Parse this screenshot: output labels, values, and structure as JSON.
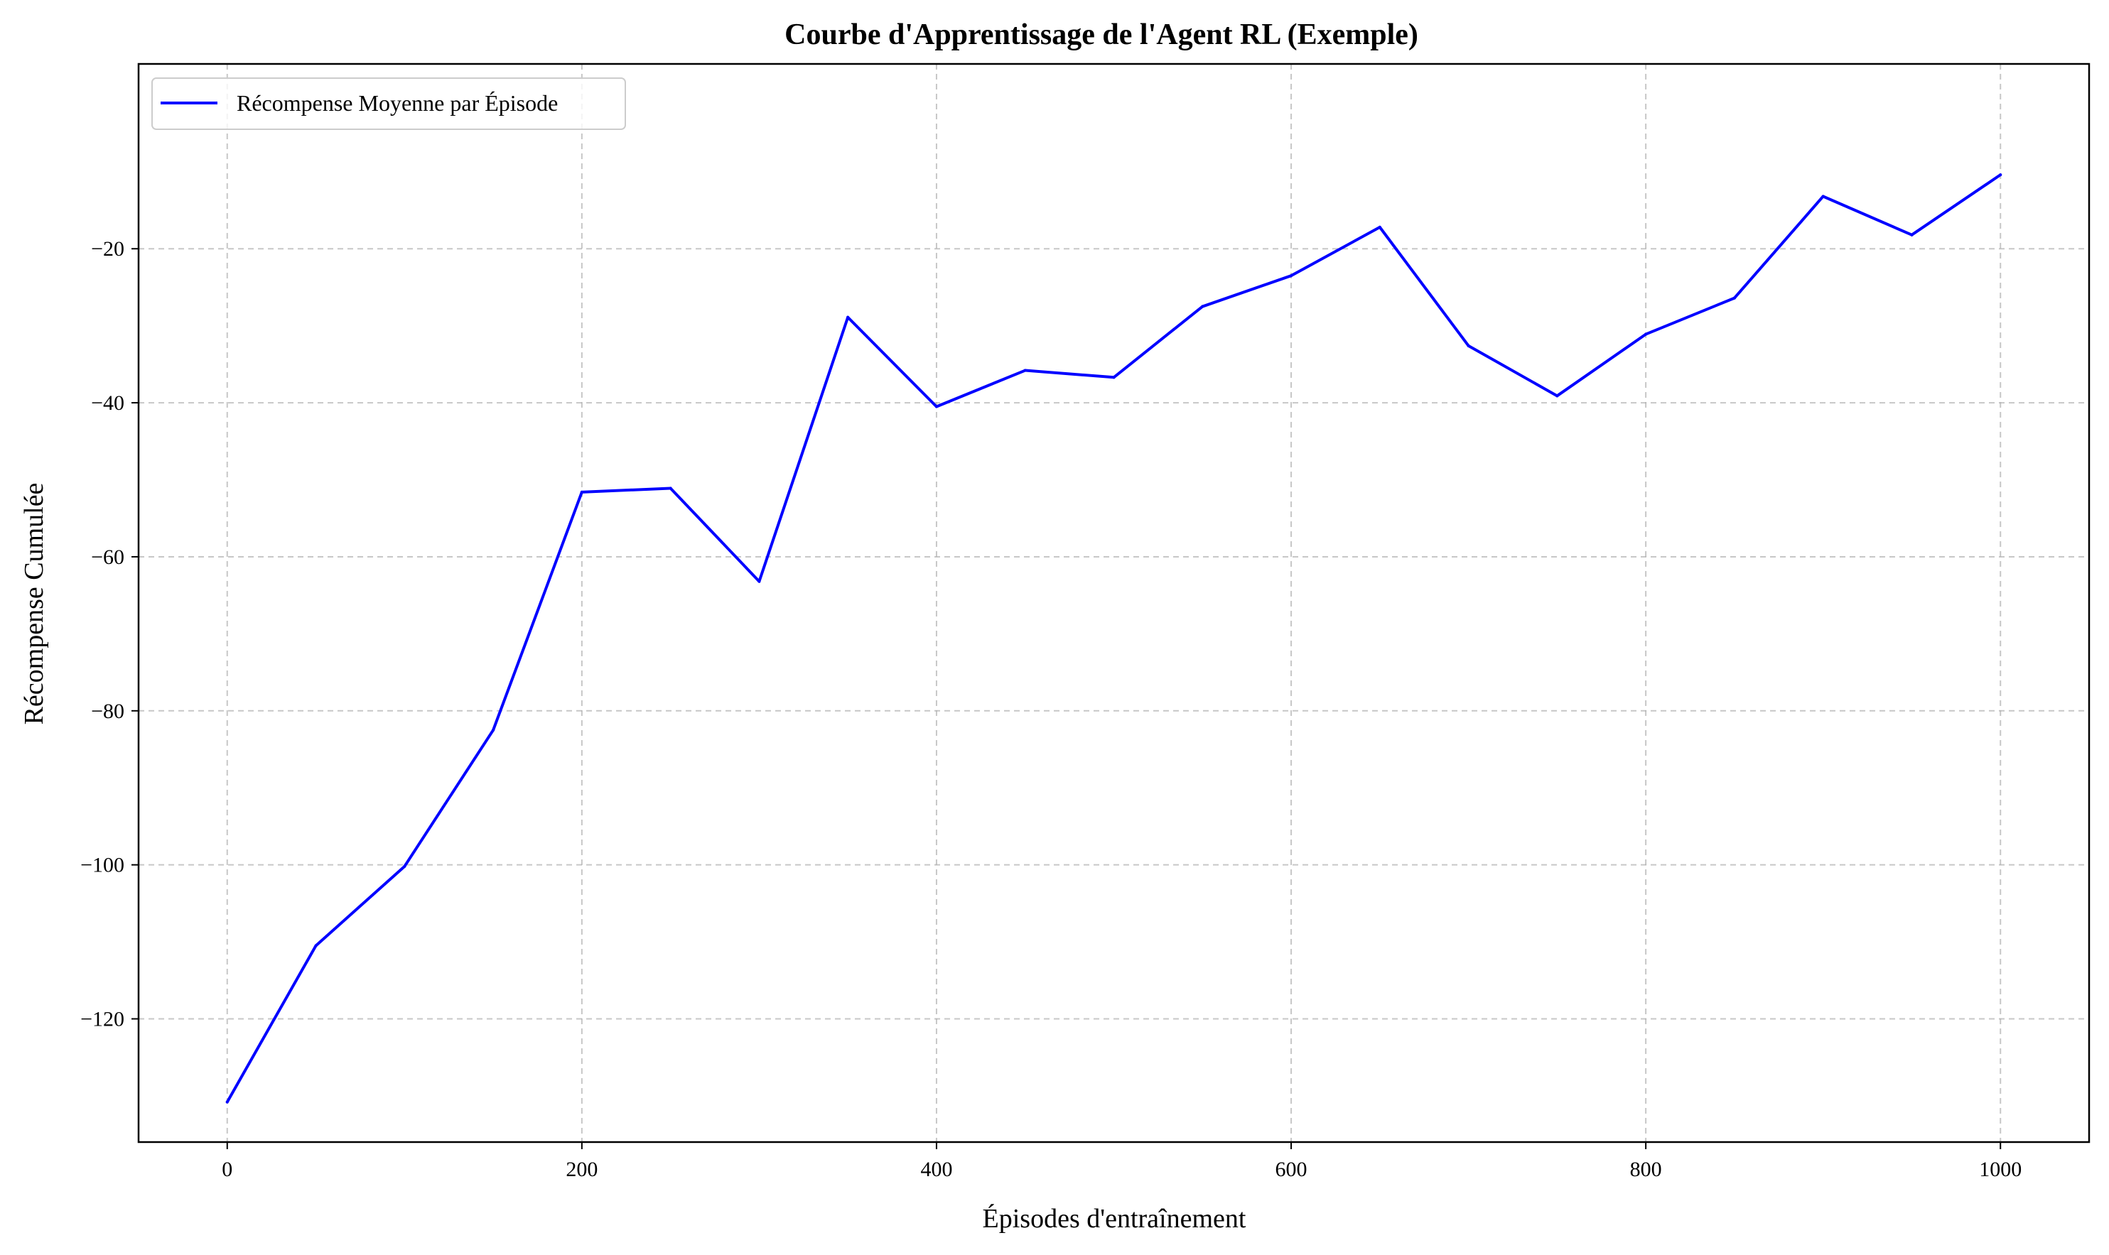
{
  "chart_data": {
    "type": "line",
    "title": "Courbe d'Apprentissage de l'Agent RL (Exemple)",
    "xlabel": "Épisodes d'entraînement",
    "ylabel": "Récompense Cumulée",
    "xlim": [
      -50,
      1050
    ],
    "ylim": [
      -136,
      4
    ],
    "xticks": [
      0,
      200,
      400,
      600,
      800,
      1000
    ],
    "xtick_labels": [
      "0",
      "200",
      "400",
      "600",
      "800",
      "1000"
    ],
    "yticks": [
      -120,
      -100,
      -80,
      -60,
      -40,
      -20
    ],
    "ytick_labels": [
      "−120",
      "−100",
      "−80",
      "−60",
      "−40",
      "−20"
    ],
    "grid": true,
    "legend_position": "top-left",
    "series": [
      {
        "name": "Récompense Moyenne par Épisode",
        "color": "#0000ff",
        "x": [
          0,
          50,
          100,
          150,
          200,
          250,
          300,
          350,
          400,
          450,
          500,
          550,
          600,
          650,
          700,
          750,
          800,
          850,
          900,
          950,
          1000
        ],
        "y": [
          -130.8,
          -110.5,
          -100.2,
          -82.5,
          -51.6,
          -51.1,
          -63.2,
          -28.9,
          -40.5,
          -35.8,
          -36.7,
          -27.5,
          -23.5,
          -17.2,
          -32.6,
          -39.1,
          -31.1,
          -26.4,
          -13.2,
          -18.2,
          -10.4
        ]
      }
    ]
  }
}
